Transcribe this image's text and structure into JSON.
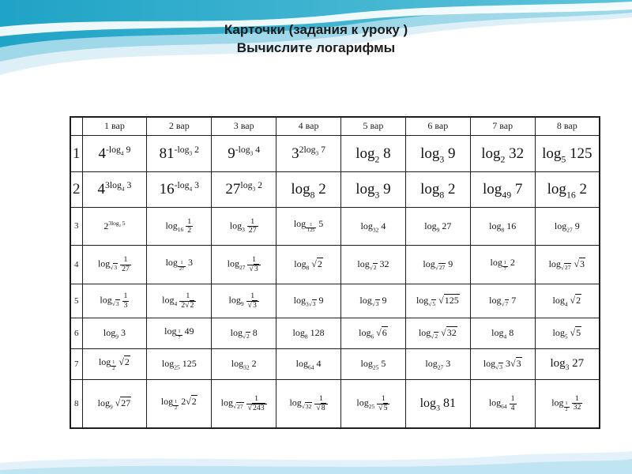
{
  "title": {
    "line1": "Карточки (задания к уроку )",
    "line2": "Вычислите логарифмы"
  },
  "table": {
    "col_headers": [
      "1 вар",
      "2 вар",
      "3 вар",
      "4 вар",
      "5 вар",
      "6 вар",
      "7 вар",
      "8 вар"
    ],
    "rows": [
      {
        "num": "1",
        "cells": [
          "4^{-log_{4} 9}",
          "81^{-log_{3} 2}",
          "9^{-log_{3} 4}",
          "3^{2log_{3} 7}",
          "log_{2} 8",
          "log_{3} 9",
          "log_{2} 32",
          "log_{5} 125"
        ]
      },
      {
        "num": "2",
        "cells": [
          "4^{3log_{4} 3}",
          "16^{-log_{4} 3}",
          "27^{log_{3} 2}",
          "log_{8} 2",
          "log_{3} 9",
          "log_{8} 2",
          "log_{49} 7",
          "log_{16} 2"
        ]
      },
      {
        "num": "3",
        "cells": [
          "2^{3log_{2} 5}",
          "log_{16} f{1|2}",
          "log_{3} f{1|27}",
          "log_{f{1|125}} 5",
          "log_{32} 4",
          "log_{9} 27",
          "log_{8} 16",
          "log_{27} 9"
        ]
      },
      {
        "num": "4",
        "cells": [
          "log_{r{3}} f{1|27}",
          "log_{f{1|27}} 3",
          "log_{27} f{1|r{3}}",
          "log_{8} r{2}",
          "log_{r{2}} 32",
          "log_{r{27}} 9",
          "log_{f{1|7}} 2",
          "log_{r{27}} r{3}"
        ]
      },
      {
        "num": "5",
        "cells": [
          "log_{r{3}} f{1|3}",
          "log_{4} f{1|2r{2}}",
          "log_{9} f{1|r{3}}",
          "log_{3r{3}} 9",
          "log_{r{3}} 9",
          "log_{r{5}} r{125}",
          "log_{r{7}} 7",
          "log_{4} r{2}"
        ]
      },
      {
        "num": "6",
        "cells": [
          "log_{9} 3",
          "log_{f{1|7}} 49",
          "log_{r{2}} 8",
          "log_{8} 128",
          "log_{6} r{6}",
          "log_{r{2}} r{32}",
          "log_{4} 8",
          "log_{5} r{5}"
        ]
      },
      {
        "num": "7",
        "cells": [
          "log_{f{1|2}} r{2}",
          "log_{25} 125",
          "log_{32} 2",
          "log_{64} 4",
          "log_{25} 5",
          "log_{27} 3",
          "log_{r{3}} 3r{3}",
          "log_{3} 27"
        ]
      },
      {
        "num": "8",
        "cells": [
          "log_{9} r{27}",
          "log_{f{1|2}} 2r{2}",
          "log_{r{27}} f{1|r{243}}",
          "log_{r{32}} f{1|r{8}}",
          "log_{25} f{1|r{5}}",
          "log_{3} 81",
          "log_{64} f{1|4}",
          "log_{f{1|2}} f{1|32}"
        ]
      }
    ]
  },
  "colors": {
    "wave_teal": "#1fa3c6",
    "wave_teal_light": "#5fc4db",
    "wave_mid_blue": "#9fd8e9",
    "wave_pale_blue": "#ddf0f8",
    "bottom_band_light": "#e3f2fa",
    "bottom_band_mid": "#bfe4f2",
    "table_border": "#1f1f1f",
    "text": "#1b1b1b"
  }
}
